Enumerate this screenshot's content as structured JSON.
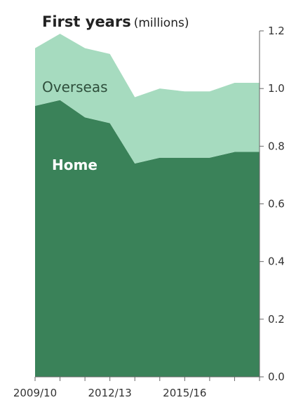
{
  "chart_data": {
    "type": "stacked_area",
    "title": "First years",
    "subtitle": "(millions)",
    "categories": [
      "2009/10",
      null,
      null,
      "2012/13",
      null,
      null,
      "2015/16",
      null,
      null,
      null
    ],
    "series": [
      {
        "name": "Home",
        "color": "#3a8259",
        "values": [
          0.94,
          0.96,
          0.9,
          0.88,
          0.74,
          0.76,
          0.76,
          0.76,
          0.78,
          0.78
        ]
      },
      {
        "name": "Overseas",
        "color": "#a6dbbf",
        "values": [
          0.2,
          0.23,
          0.24,
          0.24,
          0.23,
          0.24,
          0.23,
          0.23,
          0.24,
          0.24
        ]
      }
    ],
    "ylim": [
      0,
      1.2
    ],
    "yticks": [
      {
        "value": 0,
        "label": "0.0"
      },
      0.2,
      0.4,
      0.6,
      0.8,
      {
        "value": 1,
        "label": "1.0"
      },
      1.2
    ]
  }
}
